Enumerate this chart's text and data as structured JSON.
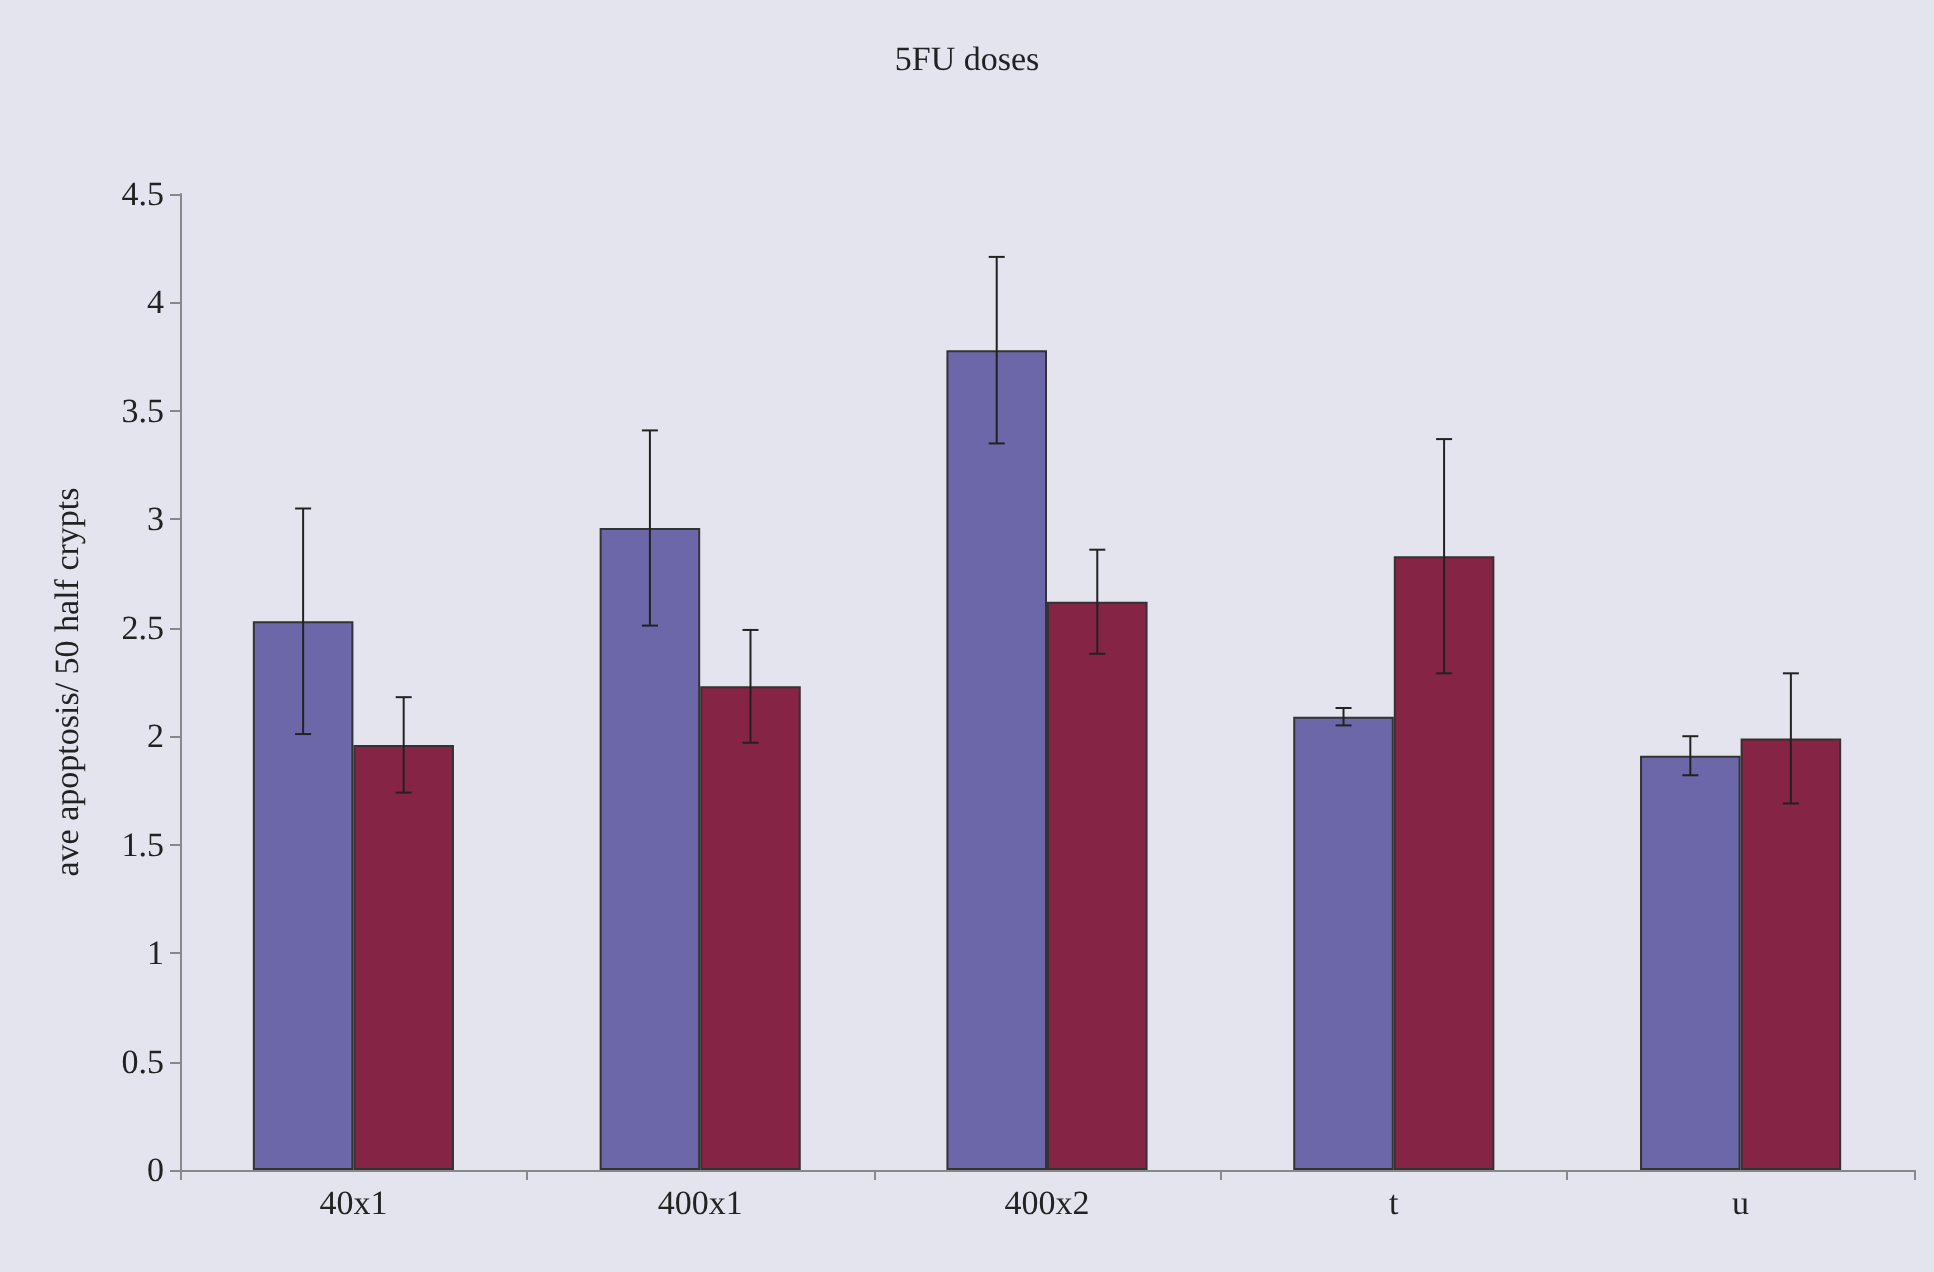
{
  "chart_data": {
    "type": "bar",
    "title": "5FU doses",
    "ylabel": "ave apoptosis/ 50 half crypts",
    "categories": [
      "40x1",
      "400x1",
      "400x2",
      "t",
      "u"
    ],
    "series": [
      {
        "color": "#6b67a8",
        "values": [
          2.53,
          2.96,
          3.78,
          2.09,
          1.91
        ],
        "errors": [
          0.52,
          0.45,
          0.43,
          0.04,
          0.09
        ]
      },
      {
        "color": "#852445",
        "values": [
          1.96,
          2.23,
          2.62,
          2.83,
          1.99
        ],
        "errors": [
          0.22,
          0.26,
          0.24,
          0.54,
          0.3
        ]
      }
    ],
    "ylim": [
      0,
      4.5
    ],
    "yticks": [
      0,
      0.5,
      1,
      1.5,
      2,
      2.5,
      3,
      3.5,
      4,
      4.5
    ]
  }
}
